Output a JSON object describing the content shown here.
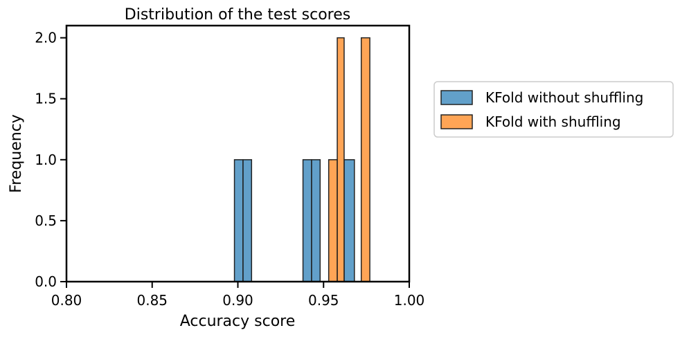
{
  "chart_data": {
    "type": "bar",
    "title": "Distribution of the test scores",
    "xlabel": "Accuracy score",
    "ylabel": "Frequency",
    "xlim": [
      0.8,
      1.0
    ],
    "ylim": [
      0.0,
      2.1
    ],
    "xticks": [
      "0.80",
      "0.85",
      "0.90",
      "0.95",
      "1.00"
    ],
    "yticks": [
      "0.0",
      "0.5",
      "1.0",
      "1.5",
      "2.0"
    ],
    "grid": false,
    "legend_position": "outside-right",
    "series": [
      {
        "name": "KFold without shuffling",
        "color": "#1f77b4",
        "bars": [
          {
            "x0": 0.898,
            "x1": 0.903,
            "count": 1
          },
          {
            "x0": 0.903,
            "x1": 0.908,
            "count": 1
          },
          {
            "x0": 0.938,
            "x1": 0.943,
            "count": 1
          },
          {
            "x0": 0.943,
            "x1": 0.948,
            "count": 1
          },
          {
            "x0": 0.962,
            "x1": 0.968,
            "count": 1
          }
        ]
      },
      {
        "name": "KFold with shuffling",
        "color": "#ff7f0e",
        "bars": [
          {
            "x0": 0.953,
            "x1": 0.958,
            "count": 1
          },
          {
            "x0": 0.958,
            "x1": 0.962,
            "count": 2
          },
          {
            "x0": 0.972,
            "x1": 0.977,
            "count": 2
          }
        ]
      }
    ]
  }
}
